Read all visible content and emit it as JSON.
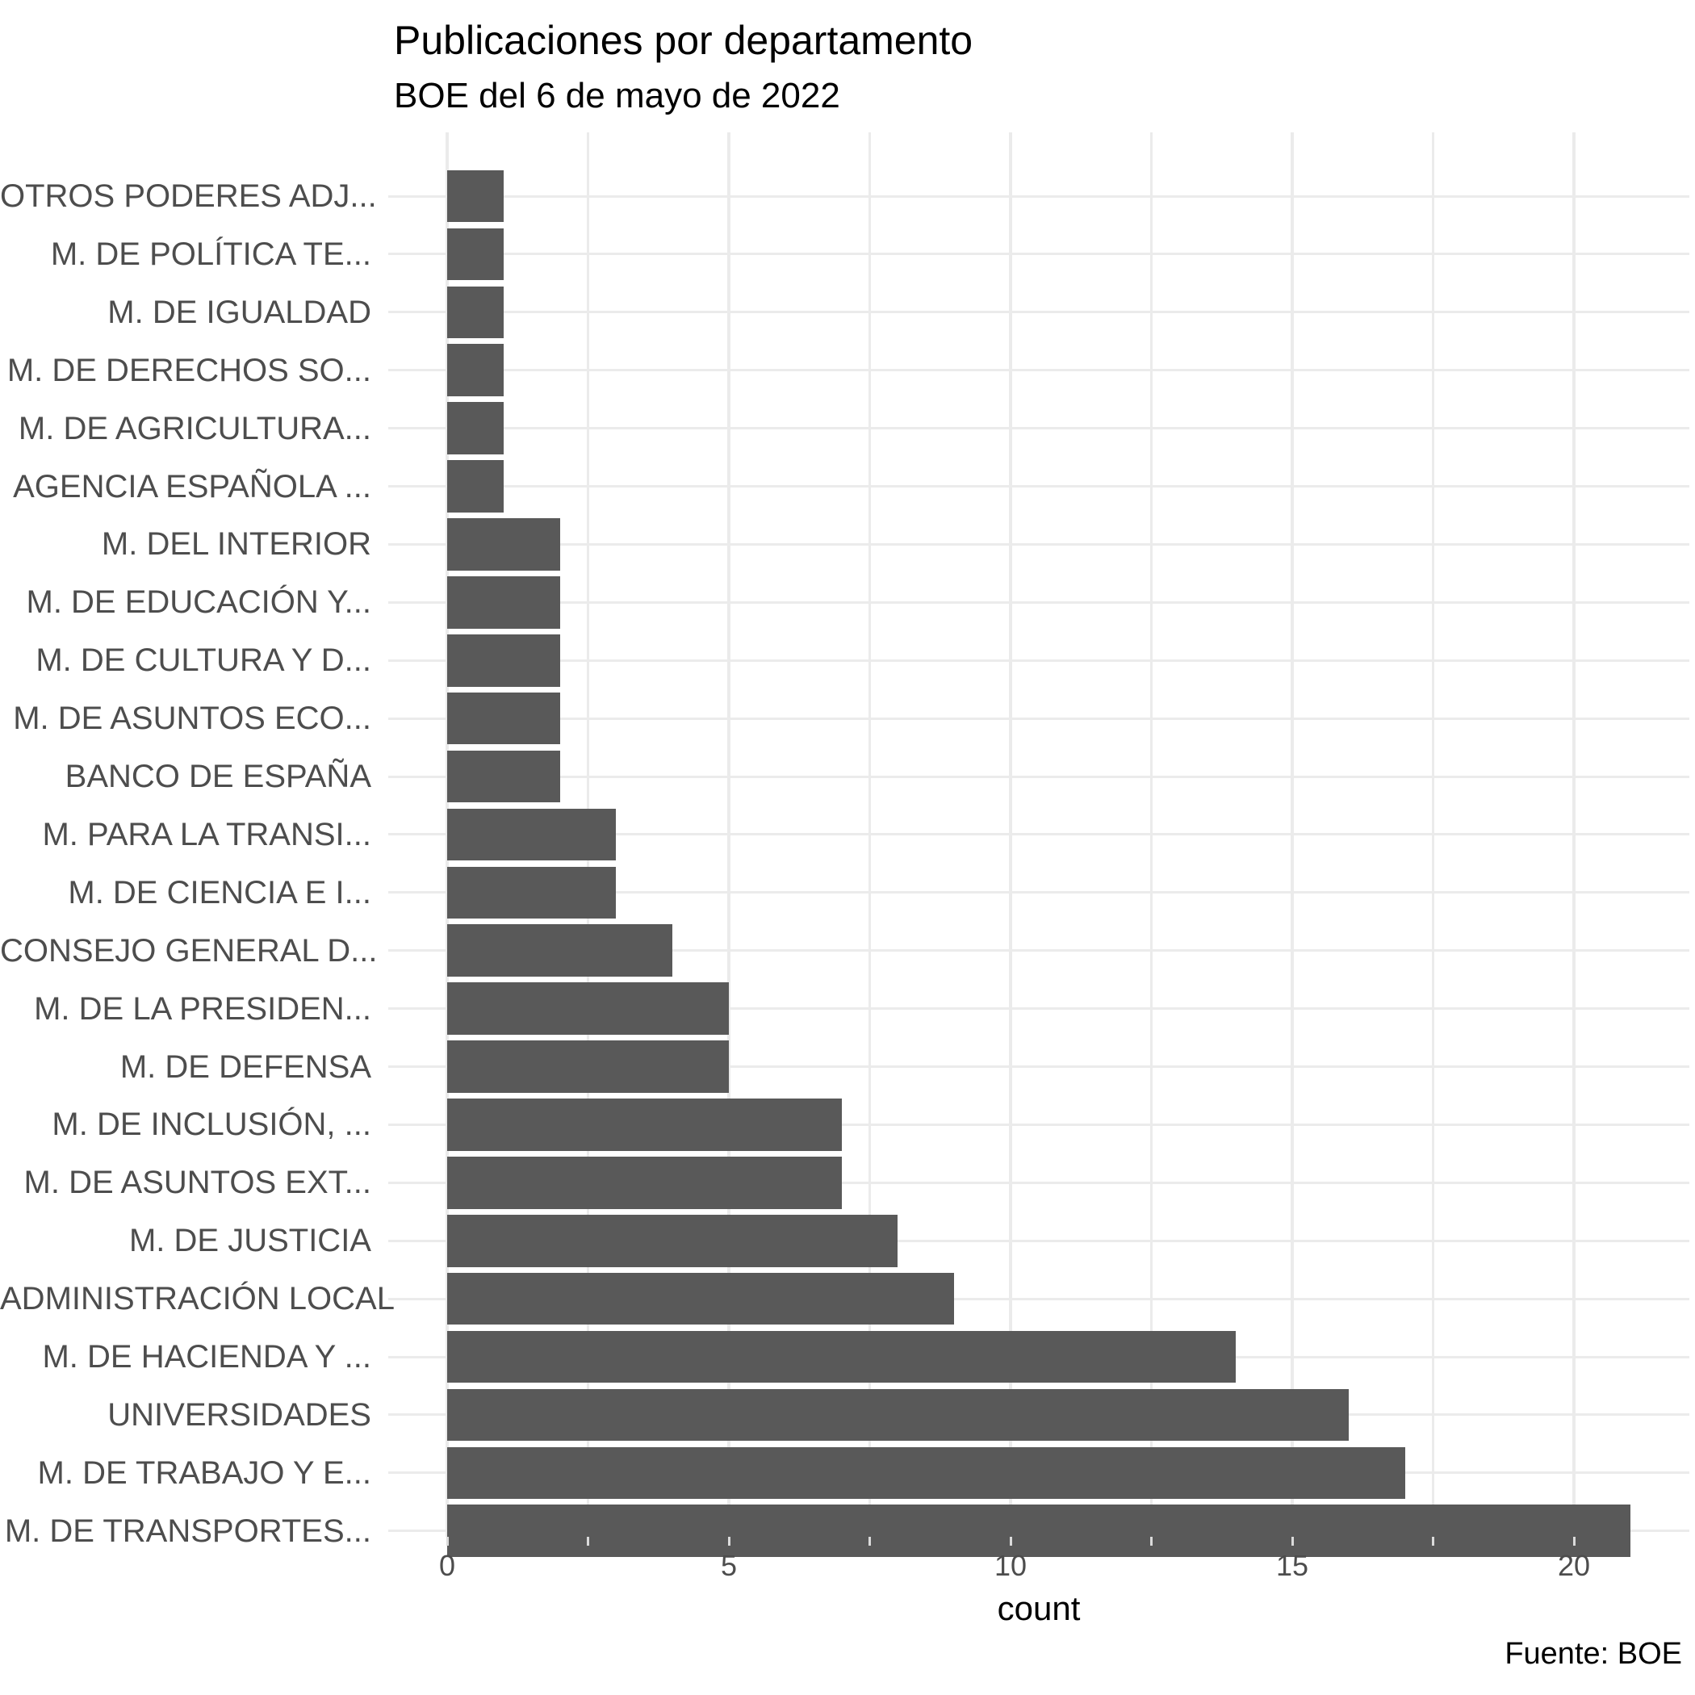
{
  "colors": {
    "bar": "#595959",
    "grid": "#EBEBEB",
    "axis_tick_stub": "#DBDBDB",
    "axis_text": "#4D4D4D",
    "title_text": "#000000",
    "background": "#FFFFFF"
  },
  "chart_data": {
    "type": "bar",
    "orientation": "horizontal",
    "title": "Publicaciones por departamento",
    "subtitle": "BOE del 6 de mayo de 2022",
    "caption": "Fuente: BOE",
    "xlabel": "count",
    "ylabel": "",
    "xlim": [
      0,
      22.05
    ],
    "x_ticks": [
      0,
      5,
      10,
      15,
      20
    ],
    "x_minor_ticks": [
      2.5,
      7.5,
      12.5,
      17.5
    ],
    "grid": "on",
    "legend": "none",
    "categories": [
      "OTROS PODERES ADJ...",
      "M. DE POLÍTICA TE...",
      "M. DE IGUALDAD",
      "M. DE DERECHOS SO...",
      "M. DE AGRICULTURA...",
      "AGENCIA ESPAÑOLA ...",
      "M. DEL INTERIOR",
      "M. DE EDUCACIÓN Y...",
      "M. DE CULTURA Y D...",
      "M. DE ASUNTOS ECO...",
      "BANCO DE ESPAÑA",
      "M. PARA LA TRANSI...",
      "M. DE CIENCIA E I...",
      "CONSEJO GENERAL D...",
      "M. DE LA PRESIDEN...",
      "M. DE DEFENSA",
      "M. DE INCLUSIÓN, ...",
      "M. DE ASUNTOS EXT...",
      "M. DE JUSTICIA",
      "ADMINISTRACIÓN LOCAL",
      "M. DE HACIENDA Y ...",
      "UNIVERSIDADES",
      "M. DE TRABAJO Y E...",
      "M. DE TRANSPORTES..."
    ],
    "values": [
      1,
      1,
      1,
      1,
      1,
      1,
      2,
      2,
      2,
      2,
      2,
      3,
      3,
      4,
      5,
      5,
      7,
      7,
      8,
      9,
      14,
      16,
      17,
      21
    ]
  }
}
